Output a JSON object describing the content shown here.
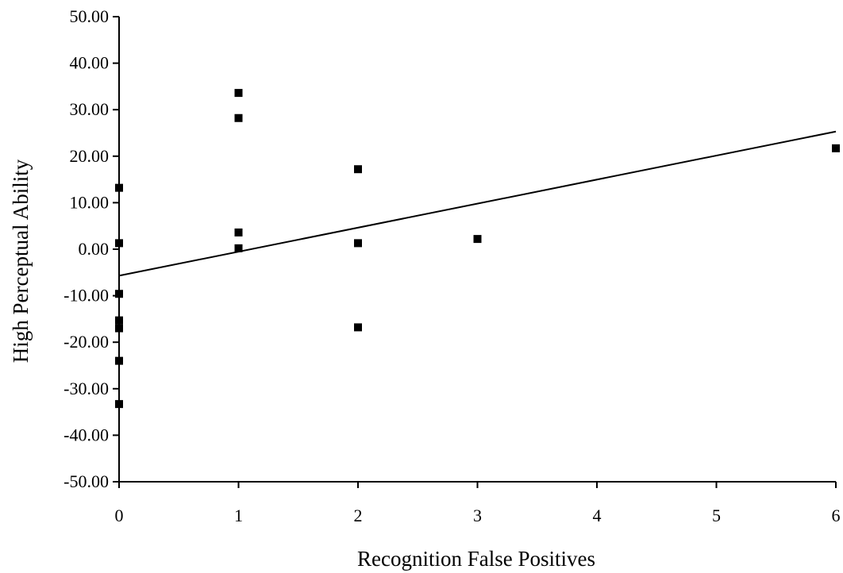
{
  "chart_data": {
    "type": "scatter",
    "xlabel": "Recognition False Positives",
    "ylabel": "High Perceptual Ability",
    "xlim": [
      0,
      6
    ],
    "ylim": [
      -50,
      50
    ],
    "x_ticks": [
      "0",
      "1",
      "2",
      "3",
      "4",
      "5",
      "6"
    ],
    "y_ticks": [
      "50.00",
      "40.00",
      "30.00",
      "20.00",
      "10.00",
      "0.00",
      "-10.00",
      "-20.00",
      "-30.00",
      "-40.00",
      "-50.00"
    ],
    "grid": false,
    "marker_color": "#000000",
    "series": [
      {
        "points": [
          {
            "x": 0,
            "y": 13.2
          },
          {
            "x": 0,
            "y": 1.3
          },
          {
            "x": 0,
            "y": -9.6
          },
          {
            "x": 0,
            "y": -15.3
          },
          {
            "x": 0,
            "y": -17.0
          },
          {
            "x": 0,
            "y": -24.0
          },
          {
            "x": 0,
            "y": -33.3
          },
          {
            "x": 1,
            "y": 33.6
          },
          {
            "x": 1,
            "y": 28.2
          },
          {
            "x": 1,
            "y": 3.6
          },
          {
            "x": 1,
            "y": 0.2
          },
          {
            "x": 2,
            "y": 17.2
          },
          {
            "x": 2,
            "y": 1.3
          },
          {
            "x": 2,
            "y": -16.8
          },
          {
            "x": 3,
            "y": 2.2
          },
          {
            "x": 6,
            "y": 21.7
          }
        ]
      }
    ],
    "trendline": {
      "x": [
        0,
        6
      ],
      "y": [
        -5.7,
        25.3
      ]
    }
  }
}
